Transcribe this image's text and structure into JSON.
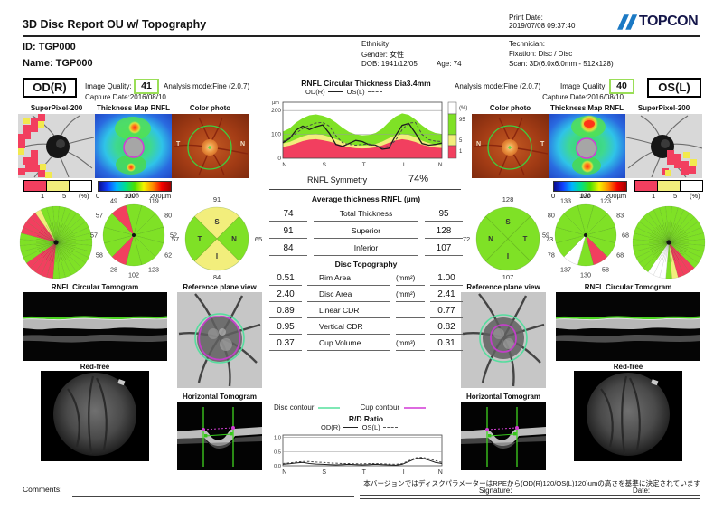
{
  "page": {
    "title": "3D Disc Report OU w/ Topography",
    "print_date_label": "Print Date:",
    "print_date": "2019/07/08 09:37:40",
    "brand": "TOPCON",
    "comments_label": "Comments:",
    "signature_label": "Signature:",
    "date_label": "Date:",
    "footnote_jp": "本バージョンではディスクパラメーターはRPEから(OD(R)120/OS(L)120)umの高さを基準に決定されています"
  },
  "patient": {
    "id": "ID: TGP000",
    "name": "Name: TGP000",
    "ethnicity": "Ethnicity:",
    "gender": "Gender: 女性",
    "dob": "DOB: 1941/12/05",
    "age": "Age: 74",
    "technician": "Technician:",
    "fixation": "Fixation: Disc / Disc",
    "scan": "Scan: 3D(6.0x6.0mm - 512x128)"
  },
  "panels": {
    "superpixel": "SuperPixel-200",
    "thickness": "Thickness Map RNFL",
    "photo": "Color photo"
  },
  "sections": {
    "circular": "RNFL Circular Tomogram",
    "reference": "Reference plane view",
    "redfree": "Red-free",
    "horizontal": "Horizontal Tomogram"
  },
  "od": {
    "label": "OD(R)",
    "image_quality_label": "Image Quality:",
    "image_quality": "41",
    "analysis_mode": "Analysis mode:Fine (2.0.7)",
    "capture_date": "Capture Date:2016/08/10",
    "photo_letters": {
      "left": "T",
      "right": "N"
    }
  },
  "os": {
    "label": "OS(L)",
    "image_quality_label": "Image Quality:",
    "image_quality": "40",
    "analysis_mode": "Analysis mode:Fine (2.0.7)",
    "capture_date": "Capture Date:2016/08/10",
    "photo_letters": {
      "left": "N",
      "right": "T"
    }
  },
  "scales": {
    "percent_labels": [
      "1",
      "5",
      "(%)"
    ],
    "micron_labels": [
      "0",
      "100",
      "200µm"
    ]
  },
  "center": {
    "symmetry_label": "RNFL Symmetry",
    "symmetry_value": "74%",
    "avg_title": "Average thickness RNFL (µm)",
    "avg_rows": [
      {
        "od": "74",
        "label": "Total Thickness",
        "os": "95"
      },
      {
        "od": "91",
        "label": "Superior",
        "os": "128"
      },
      {
        "od": "84",
        "label": "Inferior",
        "os": "107"
      }
    ],
    "disc_title": "Disc Topography",
    "disc_rows": [
      {
        "od": "0.51",
        "label": "Rim Area",
        "unit": "(mm²)",
        "os": "1.00"
      },
      {
        "od": "2.40",
        "label": "Disc Area",
        "unit": "(mm²)",
        "os": "2.41"
      },
      {
        "od": "0.89",
        "label": "Linear CDR",
        "unit": "",
        "os": "0.77"
      },
      {
        "od": "0.95",
        "label": "Vertical CDR",
        "unit": "",
        "os": "0.82"
      },
      {
        "od": "0.37",
        "label": "Cup Volume",
        "unit": "(mm³)",
        "os": "0.31"
      }
    ],
    "contour_legend": {
      "disc": "Disc contour",
      "cup": "Cup contour"
    }
  },
  "colors": {
    "pct_green": "#7fe126",
    "pct_yellow": "#f2ee7c",
    "pct_red": "#f23f5f",
    "pct_white": "#ffffff",
    "disc_contour": "#7fe8b5",
    "cup_contour": "#dd6ae0",
    "accent_blue": "#1b79c4",
    "logo_navy": "#14164a",
    "iq_box_border": "#9ade57"
  },
  "chart_data": [
    {
      "id": "rnfl_circular",
      "type": "area",
      "title": "RNFL Circular Thickness Dia3.4mm",
      "legend": [
        {
          "name": "OD(R)",
          "style": "solid"
        },
        {
          "name": "OS(L)",
          "style": "dashed"
        }
      ],
      "ylabel": "µm",
      "yticks": [
        0,
        100,
        200
      ],
      "ylim": [
        0,
        235
      ],
      "xticklabels": [
        "N",
        "S",
        "T",
        "I",
        "N"
      ],
      "percentile_legend": [
        "(%)",
        "95",
        "5",
        "1"
      ],
      "bands": {
        "green_top": [
          112,
          125,
          150,
          168,
          180,
          184,
          178,
          168,
          150,
          128,
          110,
          100,
          96,
          98,
          106,
          124,
          152,
          175,
          188,
          182,
          162,
          138,
          118,
          106,
          102
        ],
        "yellow_top": [
          62,
          68,
          80,
          92,
          100,
          102,
          98,
          90,
          80,
          68,
          60,
          55,
          53,
          55,
          60,
          70,
          84,
          96,
          102,
          98,
          88,
          74,
          64,
          58,
          56
        ],
        "red_top": [
          48,
          53,
          62,
          72,
          78,
          80,
          76,
          70,
          62,
          53,
          46,
          42,
          41,
          42,
          46,
          54,
          65,
          75,
          80,
          76,
          68,
          57,
          50,
          45,
          43
        ]
      },
      "series": [
        {
          "name": "OD(R)",
          "style": "solid",
          "values": [
            65,
            82,
            118,
            135,
            120,
            132,
            140,
            105,
            58,
            50,
            62,
            75,
            70,
            57,
            55,
            38,
            42,
            95,
            138,
            146,
            105,
            62,
            55,
            58,
            64
          ]
        },
        {
          "name": "OS(L)",
          "style": "dashed",
          "values": [
            70,
            85,
            105,
            125,
            138,
            148,
            150,
            135,
            95,
            65,
            58,
            55,
            58,
            60,
            55,
            45,
            50,
            75,
            120,
            148,
            150,
            100,
            78,
            72,
            70
          ]
        }
      ],
      "footer": {
        "label": "RNFL Symmetry",
        "value": "74%"
      }
    },
    {
      "id": "rd_ratio",
      "type": "line",
      "title": "R/D Ratio",
      "legend": [
        {
          "name": "OD(R)",
          "style": "solid"
        },
        {
          "name": "OS(L)",
          "style": "dashed"
        }
      ],
      "yticks": [
        0.0,
        0.5,
        1.0
      ],
      "ylim": [
        0,
        1.08
      ],
      "xticklabels": [
        "N",
        "S",
        "T",
        "I",
        "N"
      ],
      "series": [
        {
          "name": "OD(R)",
          "style": "solid",
          "values": [
            0.05,
            0.07,
            0.1,
            0.12,
            0.08,
            0.06,
            0.05,
            0.04,
            0.03,
            0.04,
            0.05,
            0.04,
            0.03,
            0.04,
            0.05,
            0.04,
            0.03,
            0.02,
            0.05,
            0.15,
            0.25,
            0.27,
            0.2,
            0.12,
            0.08
          ]
        },
        {
          "name": "OS(L)",
          "style": "dashed",
          "values": [
            0.08,
            0.1,
            0.13,
            0.15,
            0.15,
            0.13,
            0.12,
            0.1,
            0.09,
            0.08,
            0.08,
            0.07,
            0.07,
            0.08,
            0.08,
            0.07,
            0.06,
            0.05,
            0.08,
            0.18,
            0.28,
            0.3,
            0.25,
            0.18,
            0.12
          ]
        }
      ]
    },
    {
      "id": "od_fine_pie",
      "type": "pie",
      "kind": "fine",
      "segments": 36,
      "flags": {
        "red": [
          19,
          20,
          21,
          22,
          23,
          29,
          30,
          31,
          32
        ],
        "yellow": [
          33
        ],
        "white": []
      }
    },
    {
      "id": "od_clock_pie",
      "type": "pie",
      "kind": "clock",
      "values": [
        108,
        119,
        80,
        52,
        62,
        123,
        102,
        28,
        58,
        57,
        57,
        49
      ],
      "flags": {
        "red": [
          7,
          11
        ],
        "yellow": [],
        "white": []
      }
    },
    {
      "id": "od_quadrant_pie",
      "type": "pie",
      "kind": "quadrant",
      "sectors": [
        {
          "letter": "S",
          "value": 91,
          "band": "yellow"
        },
        {
          "letter": "N",
          "value": 65,
          "band": "green"
        },
        {
          "letter": "I",
          "value": 84,
          "band": "yellow"
        },
        {
          "letter": "T",
          "value": 57,
          "band": "green"
        }
      ]
    },
    {
      "id": "os_quadrant_pie",
      "type": "pie",
      "kind": "quadrant",
      "sectors": [
        {
          "letter": "S",
          "value": 128,
          "band": "green"
        },
        {
          "letter": "T",
          "value": 73,
          "band": "green"
        },
        {
          "letter": "I",
          "value": 107,
          "band": "green"
        },
        {
          "letter": "N",
          "value": 72,
          "band": "green"
        }
      ]
    },
    {
      "id": "os_clock_pie",
      "type": "pie",
      "kind": "clock",
      "values": [
        128,
        123,
        83,
        68,
        68,
        58,
        130,
        137,
        78,
        59,
        80,
        133
      ],
      "flags": {
        "red": [
          5
        ],
        "yellow": [],
        "white": [
          7
        ]
      }
    },
    {
      "id": "os_fine_pie",
      "type": "pie",
      "kind": "fine",
      "segments": 36,
      "flags": {
        "red": [
          14,
          15,
          16
        ],
        "yellow": [
          17
        ],
        "white": [
          19,
          20,
          21
        ]
      }
    }
  ]
}
